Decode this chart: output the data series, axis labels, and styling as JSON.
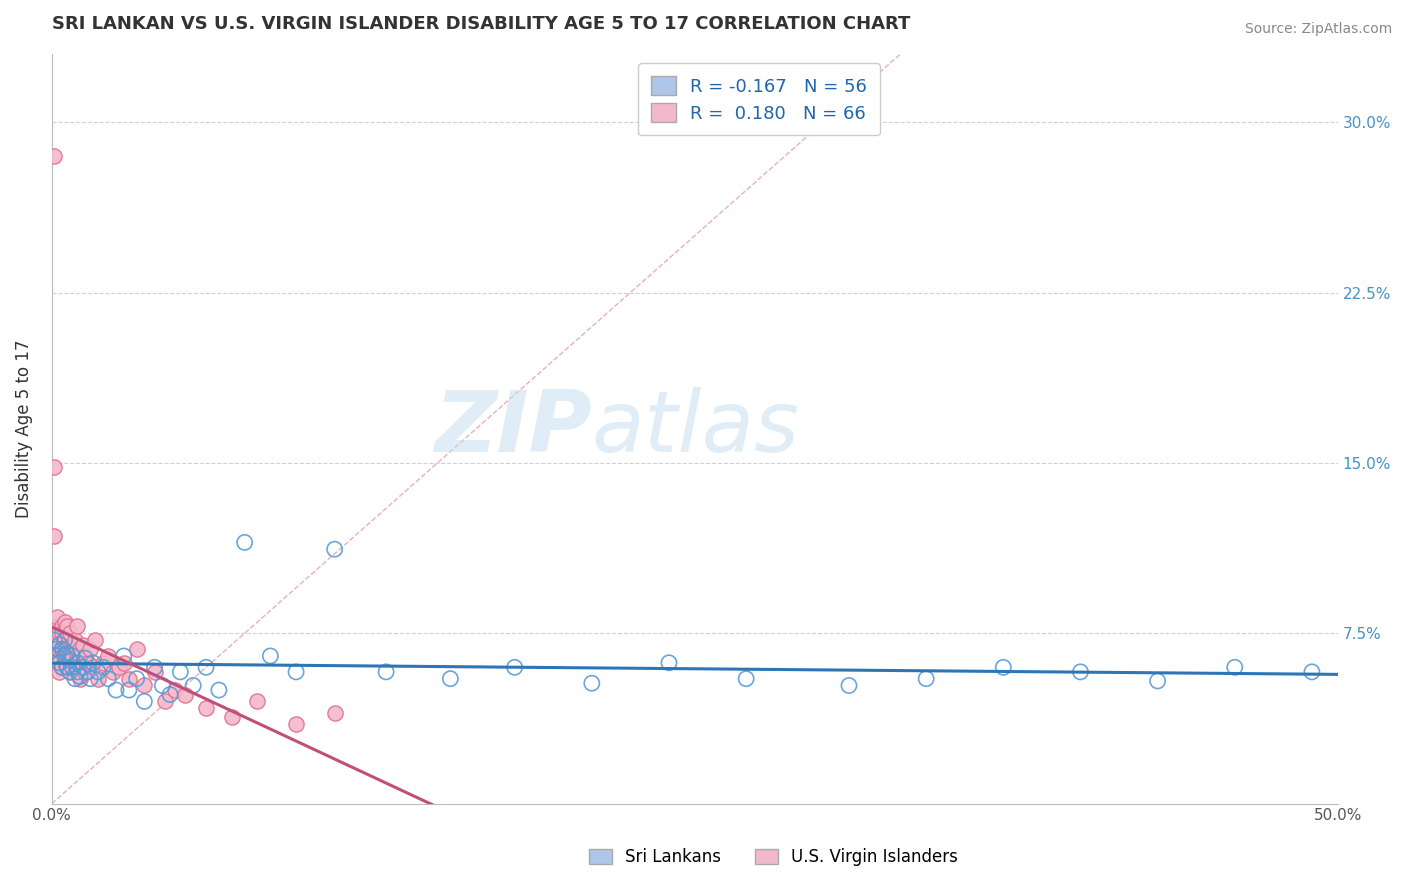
{
  "title": "SRI LANKAN VS U.S. VIRGIN ISLANDER DISABILITY AGE 5 TO 17 CORRELATION CHART",
  "source": "Source: ZipAtlas.com",
  "ylabel": "Disability Age 5 to 17",
  "xlim": [
    0.0,
    0.5
  ],
  "ylim": [
    0.0,
    0.33
  ],
  "xticks": [
    0.0,
    0.05,
    0.1,
    0.15,
    0.2,
    0.25,
    0.3,
    0.35,
    0.4,
    0.45,
    0.5
  ],
  "ytick_positions": [
    0.0,
    0.075,
    0.15,
    0.225,
    0.3
  ],
  "ytick_labels_right": [
    "",
    "7.5%",
    "15.0%",
    "22.5%",
    "30.0%"
  ],
  "watermark_zip": "ZIP",
  "watermark_atlas": "atlas",
  "color_blue_fill": "#aec6e8",
  "color_blue_edge": "#5b9bd5",
  "color_blue_line": "#2e75b6",
  "color_pink_fill": "#f4b8cb",
  "color_pink_edge": "#e07090",
  "color_pink_line": "#c0507a",
  "color_diag": "#e8b0b8",
  "color_grid": "#d0d0d0",
  "sri_lankan_x": [
    0.001,
    0.002,
    0.002,
    0.003,
    0.003,
    0.004,
    0.004,
    0.005,
    0.005,
    0.006,
    0.006,
    0.007,
    0.007,
    0.008,
    0.008,
    0.009,
    0.01,
    0.01,
    0.011,
    0.012,
    0.013,
    0.014,
    0.015,
    0.016,
    0.018,
    0.02,
    0.022,
    0.025,
    0.028,
    0.03,
    0.033,
    0.036,
    0.04,
    0.043,
    0.046,
    0.05,
    0.055,
    0.06,
    0.065,
    0.075,
    0.085,
    0.095,
    0.11,
    0.13,
    0.155,
    0.18,
    0.21,
    0.24,
    0.27,
    0.31,
    0.34,
    0.37,
    0.4,
    0.43,
    0.46,
    0.49
  ],
  "sri_lankan_y": [
    0.072,
    0.068,
    0.065,
    0.07,
    0.062,
    0.06,
    0.068,
    0.065,
    0.072,
    0.06,
    0.066,
    0.058,
    0.063,
    0.06,
    0.065,
    0.055,
    0.058,
    0.062,
    0.056,
    0.06,
    0.064,
    0.058,
    0.055,
    0.062,
    0.058,
    0.06,
    0.055,
    0.05,
    0.065,
    0.05,
    0.055,
    0.045,
    0.06,
    0.052,
    0.048,
    0.058,
    0.052,
    0.06,
    0.05,
    0.115,
    0.065,
    0.058,
    0.112,
    0.058,
    0.055,
    0.06,
    0.053,
    0.062,
    0.055,
    0.052,
    0.055,
    0.06,
    0.058,
    0.054,
    0.06,
    0.058
  ],
  "virgin_islander_x": [
    0.001,
    0.001,
    0.001,
    0.002,
    0.002,
    0.002,
    0.002,
    0.002,
    0.003,
    0.003,
    0.003,
    0.003,
    0.003,
    0.004,
    0.004,
    0.004,
    0.004,
    0.005,
    0.005,
    0.005,
    0.005,
    0.005,
    0.006,
    0.006,
    0.006,
    0.006,
    0.007,
    0.007,
    0.007,
    0.008,
    0.008,
    0.008,
    0.009,
    0.009,
    0.009,
    0.01,
    0.01,
    0.01,
    0.011,
    0.011,
    0.012,
    0.012,
    0.013,
    0.013,
    0.014,
    0.015,
    0.016,
    0.017,
    0.018,
    0.02,
    0.022,
    0.024,
    0.026,
    0.028,
    0.03,
    0.033,
    0.036,
    0.04,
    0.044,
    0.048,
    0.052,
    0.06,
    0.07,
    0.08,
    0.095,
    0.11
  ],
  "virgin_islander_y": [
    0.285,
    0.148,
    0.118,
    0.078,
    0.072,
    0.082,
    0.068,
    0.062,
    0.075,
    0.068,
    0.062,
    0.058,
    0.07,
    0.078,
    0.068,
    0.06,
    0.075,
    0.08,
    0.072,
    0.065,
    0.062,
    0.068,
    0.078,
    0.065,
    0.06,
    0.068,
    0.075,
    0.062,
    0.058,
    0.07,
    0.065,
    0.06,
    0.068,
    0.062,
    0.072,
    0.078,
    0.065,
    0.06,
    0.068,
    0.055,
    0.062,
    0.07,
    0.065,
    0.058,
    0.062,
    0.068,
    0.06,
    0.072,
    0.055,
    0.062,
    0.065,
    0.058,
    0.06,
    0.062,
    0.055,
    0.068,
    0.052,
    0.058,
    0.045,
    0.05,
    0.048,
    0.042,
    0.038,
    0.045,
    0.035,
    0.04
  ]
}
